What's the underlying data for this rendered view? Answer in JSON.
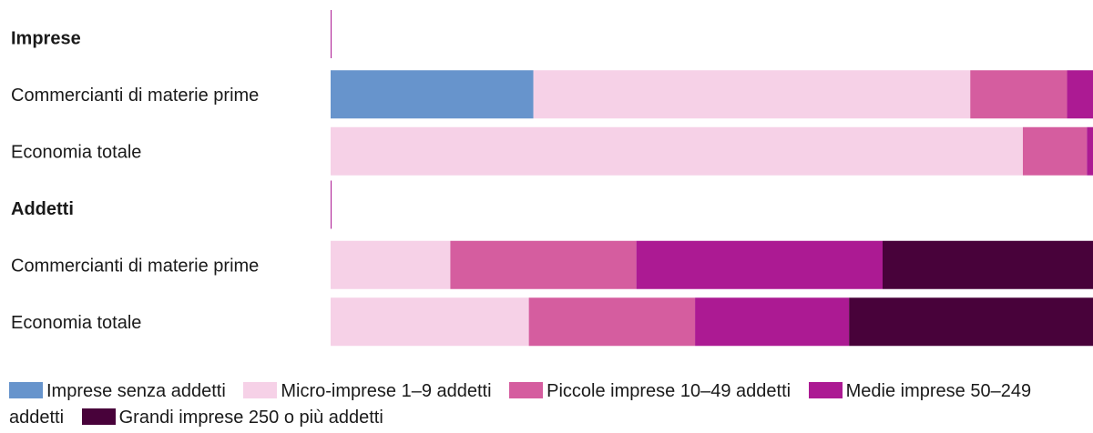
{
  "chart_data": {
    "type": "bar",
    "orientation": "horizontal",
    "stacked": true,
    "xlim": [
      0,
      100
    ],
    "title": "",
    "xlabel": "",
    "ylabel": "",
    "grid": false,
    "legend_position": "bottom",
    "groups": [
      {
        "label": "Imprese",
        "rows": [
          {
            "label": "Commercianti di materie prime",
            "values": [
              26.6,
              57.3,
              12.7,
              3.4,
              0.0
            ]
          },
          {
            "label": "Economia totale",
            "values": [
              0.0,
              90.8,
              8.4,
              0.8,
              0.0
            ]
          }
        ]
      },
      {
        "label": "Addetti",
        "rows": [
          {
            "label": "Commercianti di materie prime",
            "values": [
              0.0,
              15.7,
              24.4,
              32.3,
              27.6
            ]
          },
          {
            "label": "Economia totale",
            "values": [
              0.0,
              26.0,
              21.8,
              20.2,
              32.0
            ]
          }
        ]
      }
    ],
    "series": [
      {
        "name": "Imprese senza addetti",
        "color": "#6794cc"
      },
      {
        "name": "Micro-imprese 1–9 addetti",
        "color": "#f6d1e7"
      },
      {
        "name": "Piccole imprese 10–49 addetti",
        "color": "#d55d9f"
      },
      {
        "name": "Medie imprese 50–249 addetti",
        "color": "#ac1a93"
      },
      {
        "name": "Grandi imprese 250 o più addetti",
        "color": "#48023a"
      }
    ],
    "divider_color": "#ac1a93"
  }
}
